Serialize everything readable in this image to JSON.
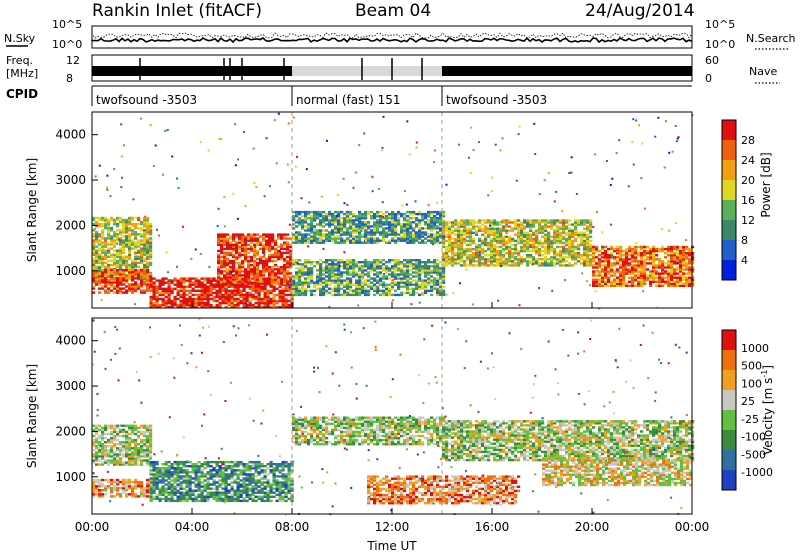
{
  "header": {
    "station": "Rankin Inlet (fitACF)",
    "beam": "Beam 04",
    "date": "24/Aug/2014"
  },
  "panels": {
    "noise": {
      "left_label": "N.Sky",
      "left_ticks": [
        "10^5",
        "10^0"
      ],
      "right_ticks": [
        "10^5",
        "10^0"
      ],
      "right_label": "N.Search"
    },
    "freq": {
      "left_label_1": "Freq.",
      "left_label_2": "[MHz]",
      "left_ticks": [
        "12",
        "8"
      ],
      "right_ticks": [
        "60",
        "0"
      ],
      "right_label": "Nave"
    },
    "cpid": {
      "label": "CPID",
      "segments": [
        {
          "text": "twofsound -3503",
          "start_h": 0,
          "end_h": 8
        },
        {
          "text": "normal (fast) 151",
          "start_h": 8,
          "end_h": 14
        },
        {
          "text": "twofsound -3503",
          "start_h": 14,
          "end_h": 24
        }
      ]
    }
  },
  "chart_data": [
    {
      "type": "heatmap",
      "name": "power",
      "ylabel": "Slant Range [km]",
      "y_ticks": [
        "4000",
        "3000",
        "2000",
        "1000"
      ],
      "ylim": [
        180,
        4500
      ],
      "x_ticks_hours": [
        0,
        4,
        8,
        12,
        16,
        20,
        24
      ],
      "colorbar_label": "Power [dB]",
      "colorbar_ticks": [
        "28",
        "24",
        "20",
        "16",
        "12",
        "8",
        "4"
      ],
      "colors": [
        "#0020e0",
        "#2060c8",
        "#3a8a6a",
        "#58b058",
        "#e0d820",
        "#f0a010",
        "#f06010",
        "#e01010"
      ],
      "bands": [
        {
          "h0": 0,
          "h1": 2.3,
          "r_center": 1450,
          "r_half": 700,
          "level": 0.55
        },
        {
          "h0": 0,
          "h1": 2.3,
          "r_center": 750,
          "r_half": 250,
          "level": 0.85
        },
        {
          "h0": 2.3,
          "h1": 8,
          "r_center": 500,
          "r_half": 320,
          "level": 0.95
        },
        {
          "h0": 5,
          "h1": 8,
          "r_center": 1250,
          "r_half": 550,
          "level": 0.9
        },
        {
          "h0": 8,
          "h1": 14,
          "r_center": 1950,
          "r_half": 350,
          "level": 0.35
        },
        {
          "h0": 8,
          "h1": 14,
          "r_center": 850,
          "r_half": 400,
          "level": 0.4
        },
        {
          "h0": 14,
          "h1": 20,
          "r_center": 1600,
          "r_half": 500,
          "level": 0.55
        },
        {
          "h0": 20,
          "h1": 24,
          "r_center": 1100,
          "r_half": 450,
          "level": 0.8
        }
      ]
    },
    {
      "type": "heatmap",
      "name": "velocity",
      "ylabel": "Slant Range [km]",
      "y_ticks": [
        "4000",
        "3000",
        "2000",
        "1000"
      ],
      "ylim": [
        180,
        4500
      ],
      "x_ticks": [
        "00:00",
        "04:00",
        "08:00",
        "12:00",
        "16:00",
        "20:00",
        "00:00"
      ],
      "x_ticks_hours": [
        0,
        4,
        8,
        12,
        16,
        20,
        24
      ],
      "xlabel": "Time UT",
      "colorbar_label": "Velocity [m s^-1]",
      "colorbar_ticks": [
        "1000",
        "500",
        "100",
        "25",
        "-25",
        "-100",
        "-500",
        "-1000"
      ],
      "colors": [
        "#2040c0",
        "#3070a0",
        "#3a8a40",
        "#60c040",
        "#c8c8c0",
        "#f0a020",
        "#f07010",
        "#e01010"
      ],
      "bands": [
        {
          "h0": 0,
          "h1": 2.3,
          "r_center": 1700,
          "r_half": 450,
          "level": 0.5
        },
        {
          "h0": 0,
          "h1": 2.3,
          "r_center": 750,
          "r_half": 200,
          "level": 0.7
        },
        {
          "h0": 2.3,
          "h1": 8,
          "r_center": 900,
          "r_half": 450,
          "level": 0.3
        },
        {
          "h0": 8,
          "h1": 14,
          "r_center": 2000,
          "r_half": 300,
          "level": 0.5
        },
        {
          "h0": 11,
          "h1": 17,
          "r_center": 700,
          "r_half": 300,
          "level": 0.75
        },
        {
          "h0": 14,
          "h1": 24,
          "r_center": 1800,
          "r_half": 450,
          "level": 0.5
        },
        {
          "h0": 18,
          "h1": 24,
          "r_center": 1100,
          "r_half": 300,
          "level": 0.6
        }
      ]
    }
  ]
}
